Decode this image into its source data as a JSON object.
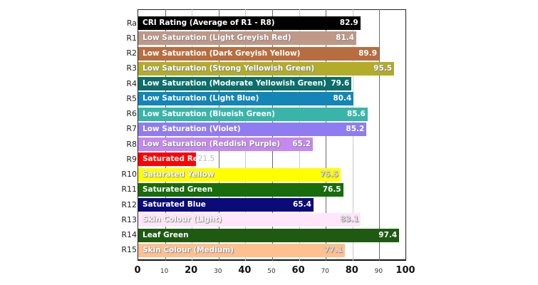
{
  "chart_data": {
    "type": "bar",
    "orientation": "horizontal",
    "title": "",
    "xlabel": "",
    "ylabel": "",
    "xlim": [
      0,
      100
    ],
    "grid": true,
    "legend": null,
    "x_ticks": [
      0,
      10,
      20,
      30,
      40,
      50,
      60,
      70,
      80,
      90,
      100
    ],
    "categories": [
      "Ra",
      "R1",
      "R2",
      "R3",
      "R4",
      "R5",
      "R6",
      "R7",
      "R8",
      "R9",
      "R10",
      "R11",
      "R12",
      "R13",
      "R14",
      "R15"
    ],
    "bar_labels": [
      "CRI Rating (Average of R1 - R8)",
      "Low Saturation (Light Greyish Red)",
      "Low Saturation (Dark Greyish Yellow)",
      "Low Saturation (Strong Yellowish Green)",
      "Low Saturation (Moderate Yellowish Green)",
      "Low Saturation (Light Blue)",
      "Low Saturation (Blueish Green)",
      "Low Saturation (Violet)",
      "Low Saturation (Reddish Purple)",
      "Saturated Red",
      "Saturated Yellow",
      "Saturated Green",
      "Saturated Blue",
      "Skin Colour (Light)",
      "Leaf Green",
      "Skin Colour (Medium)"
    ],
    "values": [
      82.9,
      81.4,
      89.9,
      95.5,
      79.6,
      80.4,
      85.6,
      85.2,
      65.2,
      21.5,
      75.5,
      76.5,
      65.4,
      83.1,
      97.4,
      77.1
    ],
    "value_labels": [
      "82.9",
      "81.4",
      "89.9",
      "95.5",
      "79.6",
      "80.4",
      "85.6",
      "85.2",
      "65.2",
      "21.5",
      "75.5",
      "76.5",
      "65.4",
      "83.1",
      "97.4",
      "77.1"
    ],
    "colors": [
      "#000000",
      "#c09888",
      "#b86d40",
      "#b2ac2a",
      "#0c6e6a",
      "#1385b6",
      "#38b5a8",
      "#8f7cf0",
      "#c488f0",
      "#ff0000",
      "#ffff00",
      "#186c0c",
      "#0a0a78",
      "#ffe6fa",
      "#1e5a12",
      "#ffc090"
    ]
  }
}
